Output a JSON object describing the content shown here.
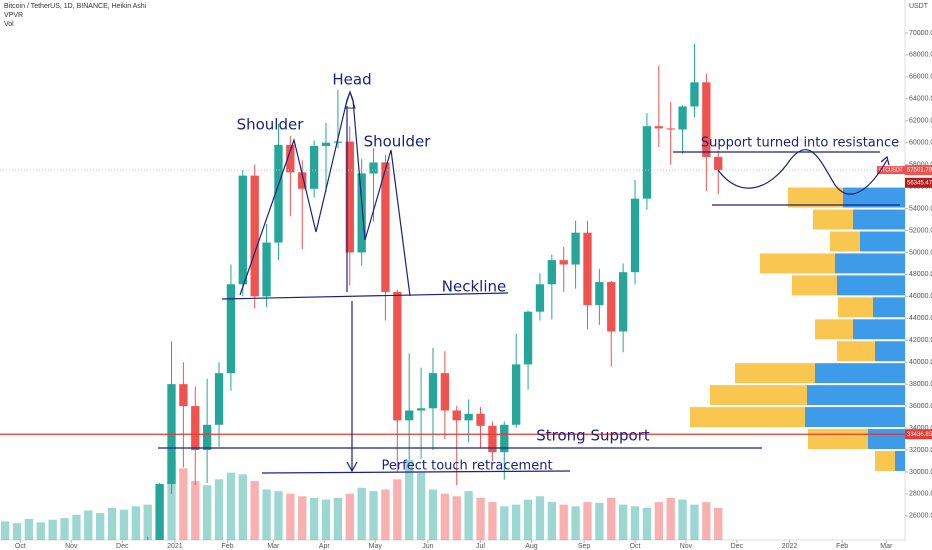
{
  "chart_data": {
    "type": "candlestick",
    "title": "Bitcoin / TetherUS, 1D, BINANCE, Heikin Ashi",
    "indicators": [
      "VPVR",
      "Vol"
    ],
    "currency": "USDT",
    "symbol": "BTCUSDT",
    "up_color": "#26a69a",
    "down_color": "#ef5350",
    "ylim": [
      23800,
      73000
    ],
    "yticks": [
      {
        "value": 26000,
        "label": "26000.00"
      },
      {
        "value": 28000,
        "label": "28000.00"
      },
      {
        "value": 30000,
        "label": "30000.00"
      },
      {
        "value": 32000,
        "label": "32000.00"
      },
      {
        "value": 34000,
        "label": "34000.00"
      },
      {
        "value": 36000,
        "label": "36000.00"
      },
      {
        "value": 38000,
        "label": "38000.00"
      },
      {
        "value": 40000,
        "label": "40000.00"
      },
      {
        "value": 42000,
        "label": "42000.00"
      },
      {
        "value": 44000,
        "label": "44000.00"
      },
      {
        "value": 46000,
        "label": "46000.00"
      },
      {
        "value": 48000,
        "label": "48000.00"
      },
      {
        "value": 50000,
        "label": "50000.00"
      },
      {
        "value": 52000,
        "label": "52000.00"
      },
      {
        "value": 54000,
        "label": "54000.00"
      },
      {
        "value": 56000,
        "label": "56000.00"
      },
      {
        "value": 58000,
        "label": "58000.00"
      },
      {
        "value": 60000,
        "label": "60000.00"
      },
      {
        "value": 62000,
        "label": "62000.00"
      },
      {
        "value": 64000,
        "label": "64000.00"
      },
      {
        "value": 66000,
        "label": "66000.00"
      },
      {
        "value": 68000,
        "label": "68000.00"
      },
      {
        "value": 70000,
        "label": "70000.00"
      }
    ],
    "xlim": [
      0,
      533
    ],
    "xticks": [
      {
        "value": 12,
        "label": "Oct"
      },
      {
        "value": 42,
        "label": "Nov"
      },
      {
        "value": 72,
        "label": "Dec"
      },
      {
        "value": 103,
        "label": "2021"
      },
      {
        "value": 134,
        "label": "Feb"
      },
      {
        "value": 161,
        "label": "Mar"
      },
      {
        "value": 191,
        "label": "Apr"
      },
      {
        "value": 221,
        "label": "May"
      },
      {
        "value": 252,
        "label": "Jun"
      },
      {
        "value": 283,
        "label": "Jul"
      },
      {
        "value": 313,
        "label": "Aug"
      },
      {
        "value": 344,
        "label": "Sep"
      },
      {
        "value": 374,
        "label": "Oct"
      },
      {
        "value": 404,
        "label": "Nov"
      },
      {
        "value": 434,
        "label": "Dec"
      },
      {
        "value": 465,
        "label": "2022"
      },
      {
        "value": 496,
        "label": "Feb"
      },
      {
        "value": 522,
        "label": "Mar"
      }
    ],
    "grid": false,
    "candles": {
      "x": [
        87,
        94,
        101,
        108,
        115,
        122,
        129,
        136,
        143,
        150,
        157,
        164,
        171,
        178,
        185,
        192,
        199,
        206,
        213,
        220,
        227,
        234,
        241,
        248,
        255,
        262,
        269,
        276,
        283,
        290,
        297,
        304,
        311,
        318,
        325,
        332,
        339,
        346,
        353,
        360,
        367,
        374,
        381,
        388,
        395,
        402,
        409,
        416,
        423
      ],
      "open": [
        23000,
        23800,
        28900,
        38000,
        36000,
        32000,
        34300,
        39000,
        47100,
        57000,
        46000,
        50900,
        59800,
        57300,
        55800,
        59700,
        60000,
        60100,
        50000,
        57200,
        58200,
        46400,
        34700,
        35600,
        35800,
        39000,
        35600,
        34700,
        35300,
        34200,
        31800,
        34300,
        39800,
        44600,
        47100,
        49300,
        48900,
        51800,
        45200,
        47300,
        42800,
        48200,
        54900,
        61500,
        61300,
        61200,
        63300,
        65500,
        58700
      ],
      "high": [
        24100,
        29000,
        41900,
        40000,
        37800,
        38500,
        40000,
        48900,
        57500,
        58000,
        52600,
        61700,
        60600,
        58400,
        60200,
        61800,
        64800,
        61500,
        58500,
        59500,
        58900,
        46600,
        40800,
        39500,
        41300,
        41000,
        36000,
        36600,
        35900,
        34600,
        34600,
        42600,
        44700,
        48100,
        49800,
        50500,
        52900,
        52900,
        48500,
        47400,
        49000,
        56600,
        62700,
        67000,
        63700,
        63400,
        69000,
        66300,
        59300
      ],
      "low": [
        21800,
        23400,
        28000,
        30400,
        28800,
        29000,
        32300,
        37400,
        46000,
        44900,
        45000,
        49300,
        53300,
        50300,
        55000,
        55500,
        59500,
        47000,
        48800,
        52800,
        43800,
        30000,
        31100,
        31200,
        32000,
        33000,
        28800,
        32700,
        32200,
        31000,
        29300,
        34000,
        37500,
        43800,
        43900,
        46400,
        46700,
        43000,
        43400,
        39600,
        40900,
        47100,
        53900,
        59600,
        58000,
        59000,
        62300,
        55600,
        55300
      ],
      "close": [
        23800,
        28900,
        38000,
        36000,
        32000,
        34300,
        39000,
        47100,
        57000,
        46000,
        50900,
        59800,
        57300,
        55800,
        59700,
        60000,
        60100,
        50000,
        57200,
        58200,
        46400,
        34700,
        35600,
        35800,
        39000,
        35600,
        34700,
        35300,
        34200,
        31800,
        34300,
        39800,
        44600,
        47100,
        49300,
        48900,
        51800,
        45200,
        47300,
        42800,
        48200,
        54900,
        61500,
        61300,
        61200,
        63300,
        65500,
        58700,
        57500
      ]
    },
    "volume": {
      "x": [
        3,
        10,
        17,
        24,
        31,
        38,
        45,
        52,
        59,
        66,
        73,
        80,
        87,
        94,
        101,
        108,
        115,
        122,
        129,
        136,
        143,
        150,
        157,
        164,
        171,
        178,
        185,
        192,
        199,
        206,
        213,
        220,
        227,
        234,
        241,
        248,
        255,
        262,
        269,
        276,
        283,
        290,
        297,
        304,
        311,
        318,
        325,
        332,
        339,
        346,
        353,
        360,
        367,
        374,
        381,
        388,
        395,
        402,
        409,
        416,
        423
      ],
      "values": [
        22,
        20,
        25,
        21,
        24,
        26,
        30,
        35,
        32,
        38,
        36,
        40,
        42,
        60,
        95,
        85,
        70,
        65,
        72,
        80,
        78,
        70,
        60,
        58,
        55,
        52,
        50,
        48,
        50,
        55,
        62,
        58,
        60,
        72,
        95,
        80,
        60,
        55,
        52,
        58,
        50,
        45,
        40,
        42,
        48,
        52,
        45,
        42,
        40,
        45,
        44,
        50,
        42,
        40,
        38,
        45,
        50,
        48,
        42,
        45,
        38
      ]
    },
    "volume_profile": {
      "bins": [
        30000,
        32000,
        34000,
        36000,
        38000,
        40000,
        42000,
        44000,
        46000,
        48000,
        50000,
        52000,
        54000,
        56000
      ],
      "up": [
        10,
        37,
        100,
        98,
        90,
        30,
        52,
        32,
        68,
        70,
        45,
        52,
        62
      ],
      "down": [
        20,
        60,
        115,
        97,
        80,
        38,
        38,
        35,
        45,
        75,
        30,
        40,
        55
      ],
      "up_color": "#3d9be9",
      "down_color": "#f9c74f"
    },
    "last_price": 57501.79,
    "price_marker": 56345.47,
    "support_line": 33436.85,
    "support_color": "#e53935",
    "annotations": [
      "Head",
      "Shoulder",
      "Shoulder",
      "Neckline",
      "Strong Support",
      "Perfect touch retracement",
      "Support turned into resistance"
    ]
  }
}
